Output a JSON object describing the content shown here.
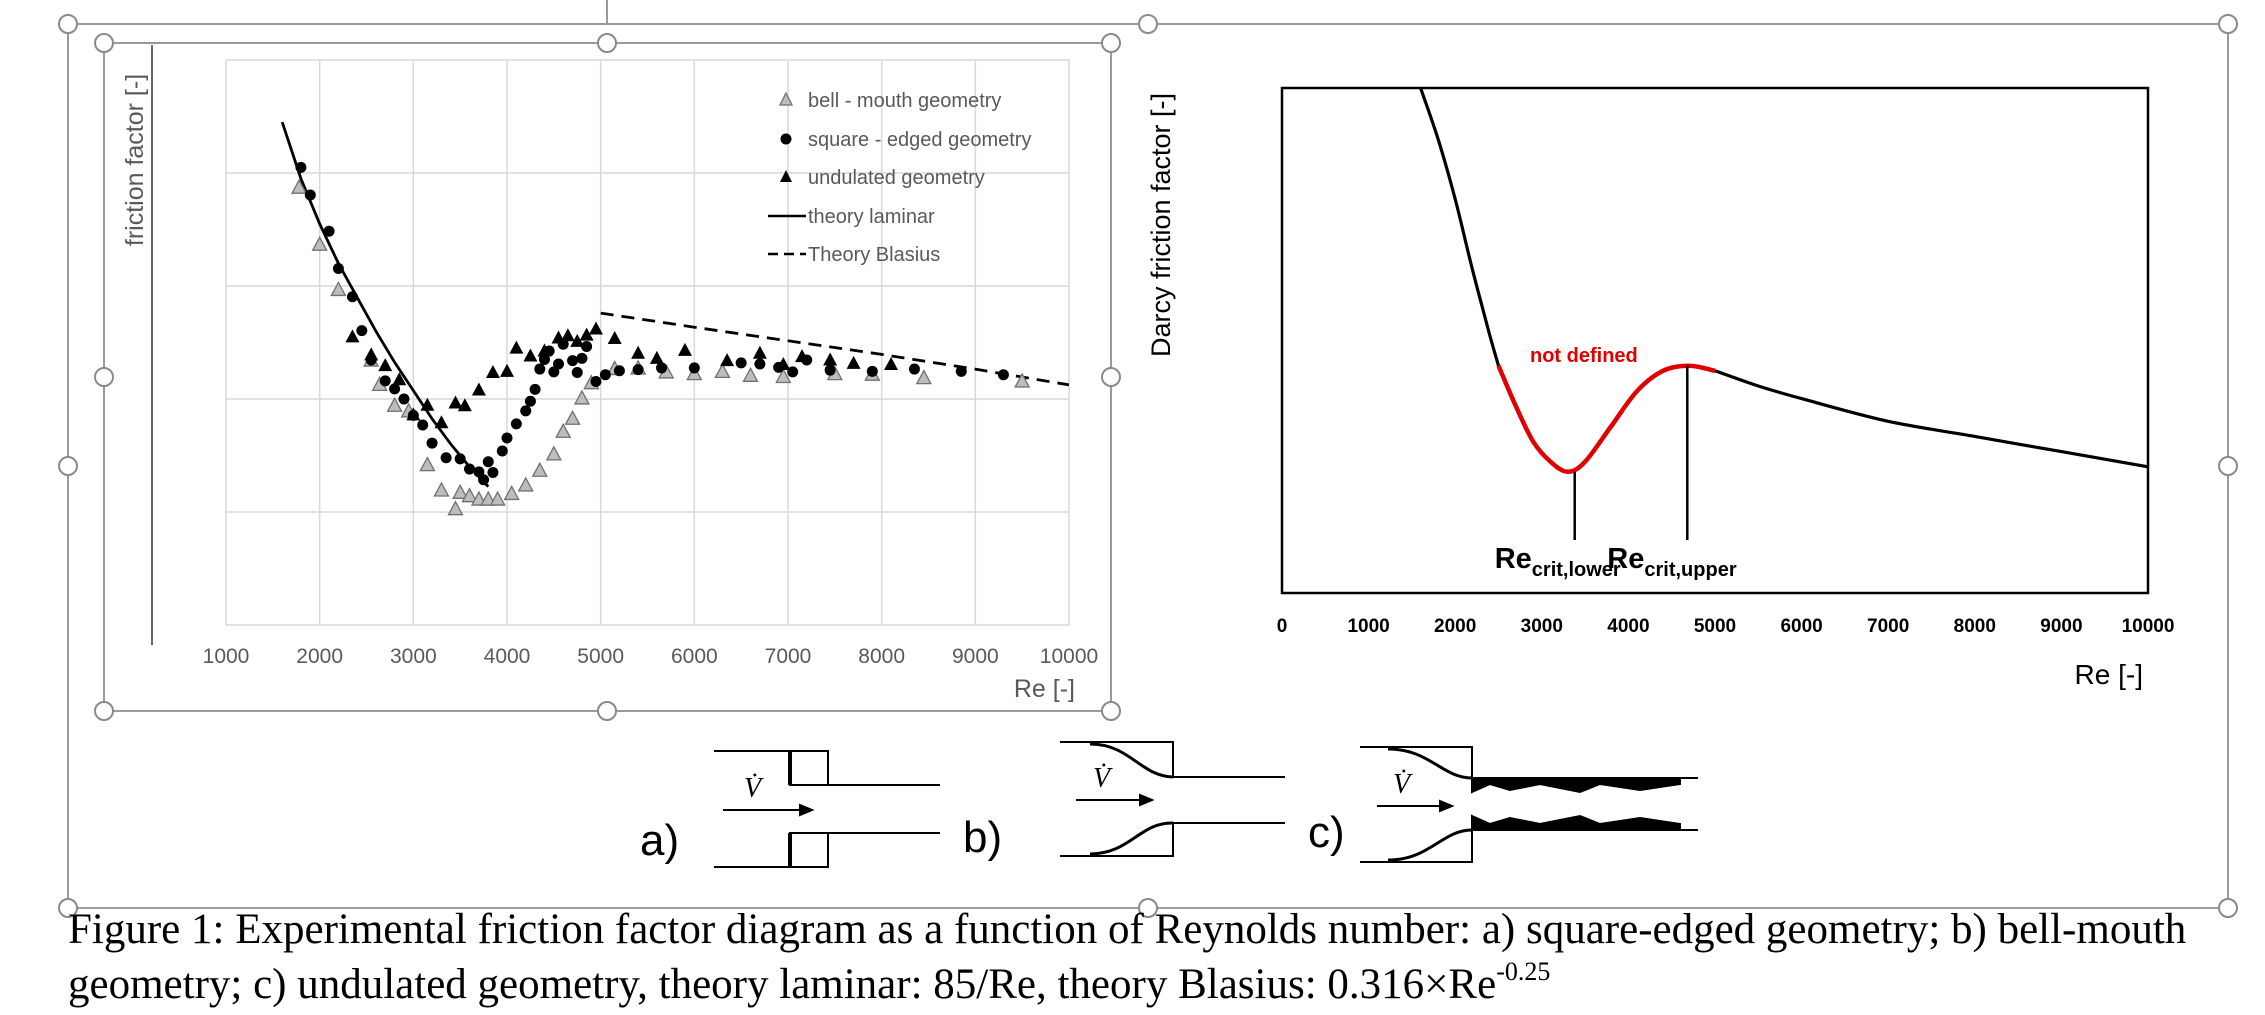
{
  "chart_data": [
    {
      "type": "scatter",
      "title": "",
      "xlabel": "Re [-]",
      "ylabel": "friction factor [-]",
      "xlim": [
        1000,
        10000
      ],
      "x_ticks": [
        "1000",
        "2000",
        "3000",
        "4000",
        "5000",
        "6000",
        "7000",
        "8000",
        "9000",
        "10000"
      ],
      "y_ticks": [],
      "grid": true,
      "legend_position": "top-right",
      "legend": [
        "bell - mouth geometry",
        "square - edged geometry",
        "undulated geometry",
        "theory laminar",
        "Theory Blasius"
      ],
      "series": [
        {
          "name": "bell - mouth geometry",
          "marker": "hollow-triangle",
          "color": "#9a9a9a",
          "points": [
            [
              1780,
              4.74
            ],
            [
              2000,
              3.73
            ],
            [
              2200,
              2.93
            ],
            [
              2550,
              1.68
            ],
            [
              2640,
              1.25
            ],
            [
              2800,
              0.88
            ],
            [
              2950,
              0.78
            ],
            [
              3150,
              -0.17
            ],
            [
              3300,
              -0.62
            ],
            [
              3450,
              -0.95
            ],
            [
              3500,
              -0.66
            ],
            [
              3600,
              -0.72
            ],
            [
              3700,
              -0.78
            ],
            [
              3800,
              -0.78
            ],
            [
              3900,
              -0.78
            ],
            [
              4050,
              -0.68
            ],
            [
              4200,
              -0.53
            ],
            [
              4350,
              -0.27
            ],
            [
              4500,
              0.02
            ],
            [
              4600,
              0.42
            ],
            [
              4700,
              0.65
            ],
            [
              4800,
              1.01
            ],
            [
              4900,
              1.28
            ],
            [
              5150,
              1.53
            ],
            [
              5400,
              1.54
            ],
            [
              5700,
              1.47
            ],
            [
              6000,
              1.44
            ],
            [
              6300,
              1.48
            ],
            [
              6600,
              1.41
            ],
            [
              6950,
              1.39
            ],
            [
              7500,
              1.44
            ],
            [
              7900,
              1.43
            ],
            [
              8450,
              1.37
            ],
            [
              9500,
              1.31
            ]
          ]
        },
        {
          "name": "square - edged geometry",
          "marker": "circle",
          "color": "#000000",
          "points": [
            [
              1800,
              5.1
            ],
            [
              1900,
              4.61
            ],
            [
              2100,
              3.97
            ],
            [
              2200,
              3.31
            ],
            [
              2350,
              2.81
            ],
            [
              2450,
              2.21
            ],
            [
              2550,
              1.69
            ],
            [
              2700,
              1.32
            ],
            [
              2800,
              1.18
            ],
            [
              2900,
              1.0
            ],
            [
              3000,
              0.71
            ],
            [
              3100,
              0.54
            ],
            [
              3200,
              0.22
            ],
            [
              3350,
              -0.04
            ],
            [
              3500,
              -0.06
            ],
            [
              3600,
              -0.24
            ],
            [
              3700,
              -0.29
            ],
            [
              3750,
              -0.43
            ],
            [
              3800,
              -0.11
            ],
            [
              3850,
              -0.3
            ],
            [
              3950,
              0.08
            ],
            [
              4000,
              0.31
            ],
            [
              4100,
              0.56
            ],
            [
              4200,
              0.79
            ],
            [
              4250,
              0.96
            ],
            [
              4300,
              1.17
            ],
            [
              4350,
              1.53
            ],
            [
              4400,
              1.7
            ],
            [
              4450,
              1.85
            ],
            [
              4500,
              1.48
            ],
            [
              4550,
              1.62
            ],
            [
              4600,
              1.97
            ],
            [
              4700,
              1.68
            ],
            [
              4750,
              1.47
            ],
            [
              4800,
              1.72
            ],
            [
              4850,
              1.93
            ],
            [
              4950,
              1.31
            ],
            [
              5050,
              1.43
            ],
            [
              5200,
              1.5
            ],
            [
              5400,
              1.52
            ],
            [
              5650,
              1.55
            ],
            [
              6000,
              1.55
            ],
            [
              6500,
              1.64
            ],
            [
              6700,
              1.62
            ],
            [
              6900,
              1.56
            ],
            [
              7050,
              1.48
            ],
            [
              7200,
              1.69
            ],
            [
              7450,
              1.51
            ],
            [
              7900,
              1.49
            ],
            [
              8350,
              1.53
            ],
            [
              8850,
              1.49
            ],
            [
              9300,
              1.43
            ]
          ]
        },
        {
          "name": "undulated geometry",
          "marker": "filled-triangle",
          "color": "#000000",
          "points": [
            [
              2350,
              2.1
            ],
            [
              2550,
              1.78
            ],
            [
              2700,
              1.59
            ],
            [
              2850,
              1.34
            ],
            [
              3000,
              0.72
            ],
            [
              3150,
              0.89
            ],
            [
              3300,
              0.58
            ],
            [
              3450,
              0.93
            ],
            [
              3550,
              0.88
            ],
            [
              3700,
              1.16
            ],
            [
              3850,
              1.47
            ],
            [
              4000,
              1.49
            ],
            [
              4100,
              1.9
            ],
            [
              4250,
              1.76
            ],
            [
              4400,
              1.85
            ],
            [
              4550,
              2.08
            ],
            [
              4650,
              2.12
            ],
            [
              4750,
              2.02
            ],
            [
              4850,
              2.13
            ],
            [
              4950,
              2.24
            ],
            [
              5150,
              2.07
            ],
            [
              5400,
              1.81
            ],
            [
              5600,
              1.72
            ],
            [
              5900,
              1.86
            ],
            [
              6350,
              1.68
            ],
            [
              6700,
              1.81
            ],
            [
              6950,
              1.61
            ],
            [
              7150,
              1.75
            ],
            [
              7450,
              1.69
            ],
            [
              7700,
              1.63
            ],
            [
              8100,
              1.61
            ]
          ]
        },
        {
          "name": "theory laminar",
          "line": "solid",
          "color": "#000000",
          "points": [
            [
              1600,
              5.9
            ],
            [
              1800,
              4.9
            ],
            [
              2000,
              4.1
            ],
            [
              2200,
              3.4
            ],
            [
              2400,
              2.8
            ],
            [
              2600,
              2.2
            ],
            [
              2800,
              1.65
            ],
            [
              3000,
              1.15
            ],
            [
              3200,
              0.65
            ],
            [
              3400,
              0.2
            ],
            [
              3600,
              -0.2
            ],
            [
              3800,
              -0.55
            ]
          ]
        },
        {
          "name": "Theory Blasius",
          "line": "dashed",
          "color": "#000000",
          "points": [
            [
              5000,
              2.52
            ],
            [
              6000,
              2.27
            ],
            [
              7000,
              2.03
            ],
            [
              8000,
              1.79
            ],
            [
              9000,
              1.53
            ],
            [
              10000,
              1.25
            ]
          ]
        }
      ]
    },
    {
      "type": "line",
      "title": "",
      "xlabel": "Re [-]",
      "ylabel": "Darcy friction factor [-]",
      "xlim": [
        0,
        10000
      ],
      "x_ticks": [
        "0",
        "1000",
        "2000",
        "3000",
        "4000",
        "5000",
        "6000",
        "7000",
        "8000",
        "9000",
        "10000"
      ],
      "y_ticks": [],
      "grid": false,
      "annotation": "not defined",
      "series": [
        {
          "name": "",
          "color": "#000000",
          "points": [
            [
              1600,
              1.0
            ],
            [
              1800,
              0.9
            ],
            [
              2000,
              0.78
            ],
            [
              2200,
              0.64
            ],
            [
              2400,
              0.51
            ],
            [
              2500,
              0.45
            ]
          ]
        },
        {
          "name": "not defined",
          "color": "#e00000",
          "points": [
            [
              2500,
              0.45
            ],
            [
              2700,
              0.37
            ],
            [
              2900,
              0.3
            ],
            [
              3100,
              0.26
            ],
            [
              3300,
              0.24
            ],
            [
              3500,
              0.26
            ],
            [
              3800,
              0.33
            ],
            [
              4100,
              0.4
            ],
            [
              4400,
              0.44
            ],
            [
              4700,
              0.45
            ],
            [
              5000,
              0.44
            ]
          ]
        },
        {
          "name": "",
          "color": "#000000",
          "points": [
            [
              5000,
              0.44
            ],
            [
              5500,
              0.41
            ],
            [
              6000,
              0.385
            ],
            [
              7000,
              0.34
            ],
            [
              8000,
              0.31
            ],
            [
              9000,
              0.28
            ],
            [
              10000,
              0.25
            ]
          ]
        }
      ],
      "markers": [
        {
          "x": 3380,
          "label": "Re",
          "sub": "crit,lower"
        },
        {
          "x": 4680,
          "label": "Re",
          "sub": "crit,upper"
        }
      ]
    }
  ],
  "schematics": [
    {
      "id": "a",
      "label": "a)",
      "flow_symbol": "V̇"
    },
    {
      "id": "b",
      "label": "b)",
      "flow_symbol": "V̇"
    },
    {
      "id": "c",
      "label": "c)",
      "flow_symbol": "V̇"
    }
  ],
  "caption": {
    "text": "Figure 1: Experimental friction factor diagram as a function of Reynolds number: a) square-edged geometry; b) bell-mouth geometry; c) undulated geometry, theory laminar: 85/Re, theory Blasius: 0.316×Re",
    "superscript": "-0.25"
  }
}
